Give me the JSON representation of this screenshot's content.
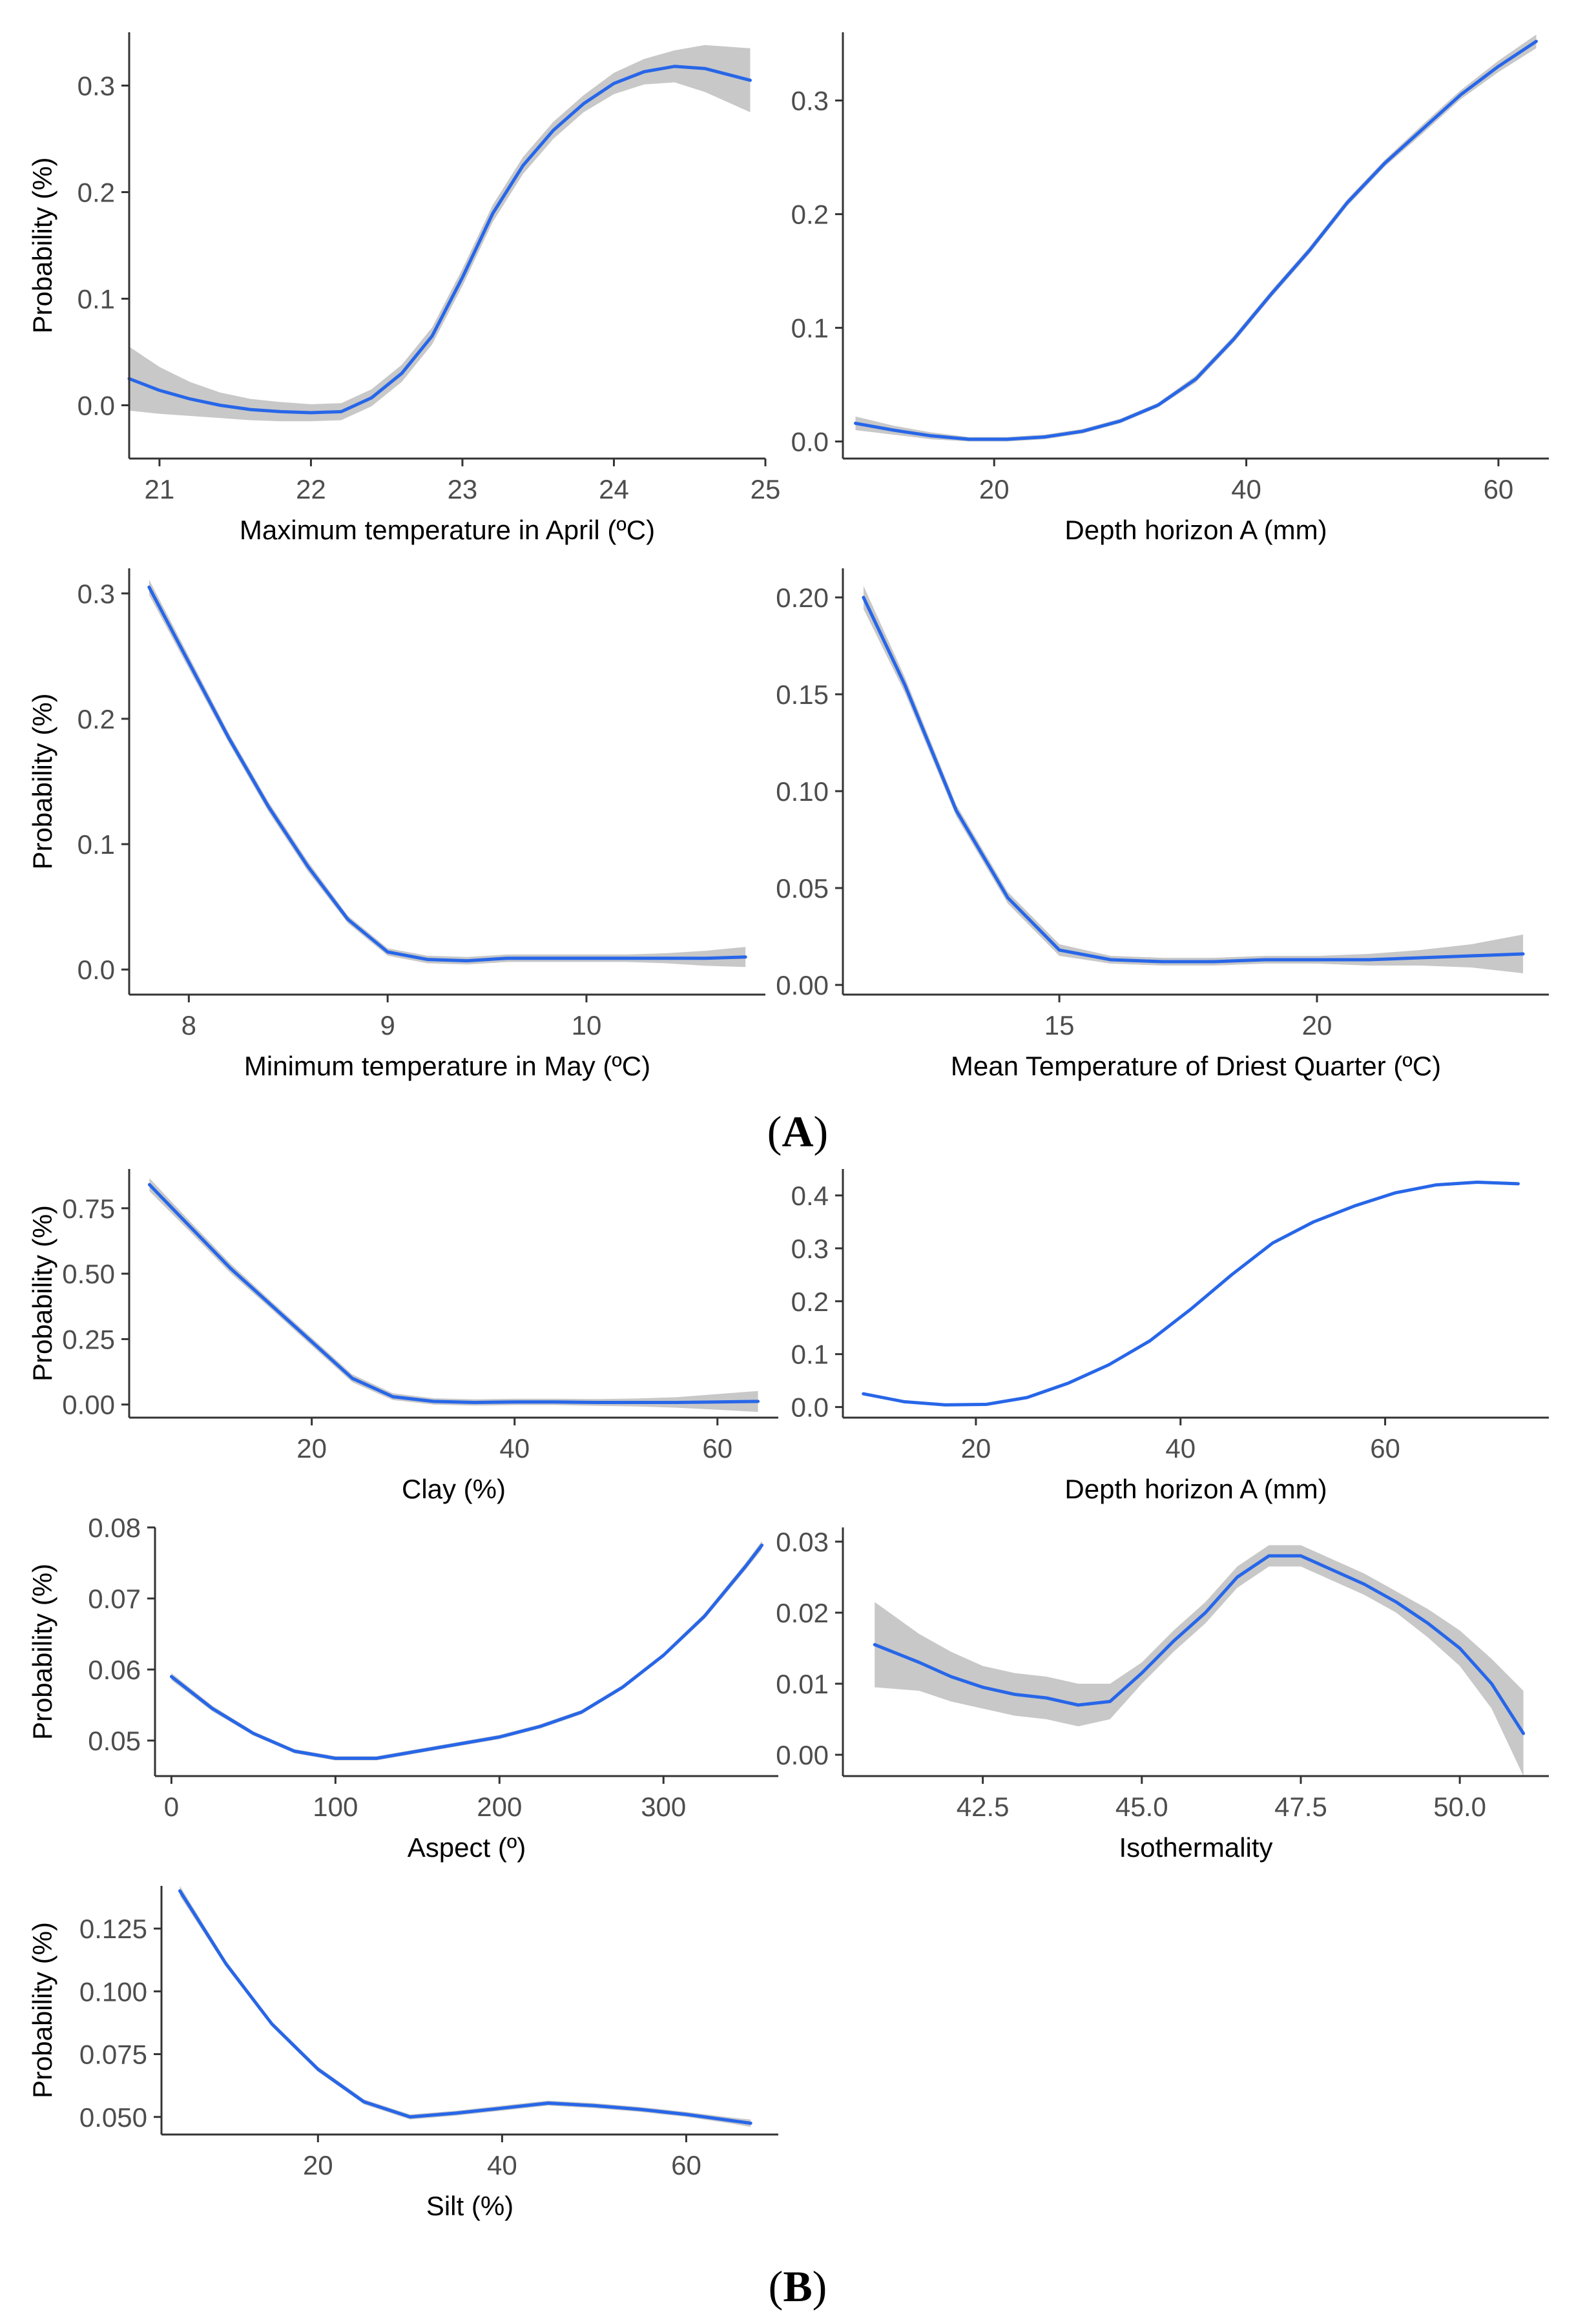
{
  "figure": {
    "panel_labels": [
      {
        "open": "(",
        "letter": "A",
        "close": ")"
      },
      {
        "open": "(",
        "letter": "B",
        "close": ")"
      }
    ]
  },
  "colors": {
    "line": "#2766e8",
    "band": "#c8c8c8",
    "axis": "#333333",
    "tick_text": "#4d4d4d",
    "label_text": "#000000"
  },
  "chart_data": [
    {
      "type": "line",
      "panel": "A",
      "xlabel": "Maximum temperature in April (ºC)",
      "ylabel": "Probability (%)",
      "xlim": [
        20.8,
        25.0
      ],
      "ylim": [
        -0.05,
        0.35
      ],
      "xticks": [
        21,
        22,
        23,
        24,
        25
      ],
      "yticks": [
        0.0,
        0.1,
        0.2,
        0.3
      ],
      "ytick_labels": [
        "0.0",
        "0.1",
        "0.2",
        "0.3"
      ],
      "x": [
        20.8,
        21.0,
        21.2,
        21.4,
        21.6,
        21.8,
        22.0,
        22.2,
        22.4,
        22.6,
        22.8,
        23.0,
        23.2,
        23.4,
        23.6,
        23.8,
        24.0,
        24.2,
        24.4,
        24.6,
        24.9
      ],
      "y": [
        0.025,
        0.014,
        0.006,
        0.0,
        -0.004,
        -0.006,
        -0.007,
        -0.006,
        0.007,
        0.03,
        0.065,
        0.12,
        0.18,
        0.225,
        0.258,
        0.283,
        0.302,
        0.313,
        0.318,
        0.316,
        0.305
      ],
      "band": [
        0.03,
        0.022,
        0.016,
        0.012,
        0.01,
        0.009,
        0.008,
        0.008,
        0.008,
        0.008,
        0.008,
        0.008,
        0.008,
        0.008,
        0.008,
        0.008,
        0.01,
        0.012,
        0.015,
        0.022,
        0.03
      ]
    },
    {
      "type": "line",
      "panel": "A",
      "xlabel": "Depth horizon A (mm)",
      "ylabel": "",
      "xlim": [
        8,
        64
      ],
      "ylim": [
        -0.015,
        0.36
      ],
      "xticks": [
        20,
        40,
        60
      ],
      "yticks": [
        0.0,
        0.1,
        0.2,
        0.3
      ],
      "ytick_labels": [
        "0.0",
        "0.1",
        "0.2",
        "0.3"
      ],
      "x": [
        9,
        12,
        15,
        18,
        21,
        24,
        27,
        30,
        33,
        36,
        39,
        42,
        45,
        48,
        51,
        54,
        57,
        60,
        63
      ],
      "y": [
        0.016,
        0.01,
        0.005,
        0.002,
        0.002,
        0.004,
        0.009,
        0.018,
        0.032,
        0.055,
        0.09,
        0.13,
        0.168,
        0.21,
        0.245,
        0.275,
        0.305,
        0.33,
        0.352
      ],
      "band": [
        0.006,
        0.004,
        0.003,
        0.002,
        0.002,
        0.002,
        0.002,
        0.002,
        0.002,
        0.003,
        0.003,
        0.003,
        0.003,
        0.003,
        0.003,
        0.004,
        0.004,
        0.005,
        0.006
      ]
    },
    {
      "type": "line",
      "panel": "A",
      "xlabel": "Minimum temperature in May (ºC)",
      "ylabel": "Probability (%)",
      "xlim": [
        7.7,
        10.9
      ],
      "ylim": [
        -0.02,
        0.32
      ],
      "xticks": [
        8,
        9,
        10
      ],
      "yticks": [
        0.0,
        0.1,
        0.2,
        0.3
      ],
      "ytick_labels": [
        "0.0",
        "0.1",
        "0.2",
        "0.3"
      ],
      "x": [
        7.8,
        8.0,
        8.2,
        8.4,
        8.6,
        8.8,
        9.0,
        9.2,
        9.4,
        9.6,
        9.8,
        10.0,
        10.2,
        10.4,
        10.6,
        10.8
      ],
      "y": [
        0.305,
        0.245,
        0.185,
        0.13,
        0.082,
        0.04,
        0.014,
        0.008,
        0.007,
        0.009,
        0.009,
        0.009,
        0.009,
        0.009,
        0.009,
        0.01
      ],
      "band": [
        0.006,
        0.005,
        0.004,
        0.004,
        0.004,
        0.003,
        0.003,
        0.003,
        0.003,
        0.003,
        0.003,
        0.003,
        0.003,
        0.004,
        0.006,
        0.008
      ]
    },
    {
      "type": "line",
      "panel": "A",
      "xlabel": "Mean Temperature of Driest Quarter (ºC)",
      "ylabel": "",
      "xlim": [
        10.8,
        24.5
      ],
      "ylim": [
        -0.005,
        0.215
      ],
      "xticks": [
        15,
        20
      ],
      "yticks": [
        0.0,
        0.05,
        0.1,
        0.15,
        0.2
      ],
      "ytick_labels": [
        "0.00",
        "0.05",
        "0.10",
        "0.15",
        "0.20"
      ],
      "x": [
        11.2,
        12,
        13,
        14,
        15,
        16,
        17,
        18,
        19,
        20,
        21,
        22,
        23,
        24
      ],
      "y": [
        0.2,
        0.155,
        0.09,
        0.045,
        0.018,
        0.013,
        0.012,
        0.012,
        0.013,
        0.013,
        0.013,
        0.014,
        0.015,
        0.016
      ],
      "band": [
        0.006,
        0.004,
        0.003,
        0.003,
        0.003,
        0.002,
        0.002,
        0.002,
        0.002,
        0.002,
        0.003,
        0.004,
        0.006,
        0.01
      ]
    },
    {
      "type": "line",
      "panel": "B",
      "xlabel": "Clay (%)",
      "ylabel": "Probability (%)",
      "xlim": [
        2,
        66
      ],
      "ylim": [
        -0.05,
        0.9
      ],
      "xticks": [
        20,
        40,
        60
      ],
      "yticks": [
        0.0,
        0.25,
        0.5,
        0.75
      ],
      "ytick_labels": [
        "0.00",
        "0.25",
        "0.50",
        "0.75"
      ],
      "x": [
        4,
        8,
        12,
        16,
        20,
        24,
        28,
        32,
        36,
        40,
        44,
        48,
        52,
        56,
        60,
        64
      ],
      "y": [
        0.84,
        0.68,
        0.52,
        0.38,
        0.24,
        0.1,
        0.03,
        0.012,
        0.008,
        0.01,
        0.01,
        0.008,
        0.008,
        0.008,
        0.01,
        0.012
      ],
      "band": [
        0.025,
        0.02,
        0.018,
        0.015,
        0.015,
        0.015,
        0.013,
        0.012,
        0.012,
        0.012,
        0.012,
        0.013,
        0.015,
        0.02,
        0.03,
        0.04
      ]
    },
    {
      "type": "line",
      "panel": "B",
      "xlabel": "Depth horizon A (mm)",
      "ylabel": "",
      "xlim": [
        7,
        76
      ],
      "ylim": [
        -0.02,
        0.45
      ],
      "xticks": [
        20,
        40,
        60
      ],
      "yticks": [
        0.0,
        0.1,
        0.2,
        0.3,
        0.4
      ],
      "ytick_labels": [
        "0.0",
        "0.1",
        "0.2",
        "0.3",
        "0.4"
      ],
      "x": [
        9,
        13,
        17,
        21,
        25,
        29,
        33,
        37,
        41,
        45,
        49,
        53,
        57,
        61,
        65,
        69,
        73
      ],
      "y": [
        0.025,
        0.01,
        0.004,
        0.005,
        0.018,
        0.045,
        0.08,
        0.125,
        0.185,
        0.25,
        0.31,
        0.35,
        0.38,
        0.405,
        0.42,
        0.425,
        0.422
      ],
      "band": [
        0.003,
        0.002,
        0.002,
        0.002,
        0.002,
        0.002,
        0.002,
        0.002,
        0.002,
        0.002,
        0.002,
        0.002,
        0.003,
        0.003,
        0.003,
        0.003,
        0.003
      ]
    },
    {
      "type": "line",
      "panel": "B",
      "xlabel": "Aspect (º)",
      "ylabel": "Probability (%)",
      "xlim": [
        -10,
        370
      ],
      "ylim": [
        0.045,
        0.08
      ],
      "xticks": [
        0,
        100,
        200,
        300
      ],
      "yticks": [
        0.05,
        0.06,
        0.07,
        0.08
      ],
      "ytick_labels": [
        "0.05",
        "0.06",
        "0.07",
        "0.08"
      ],
      "x": [
        0,
        25,
        50,
        75,
        100,
        125,
        150,
        175,
        200,
        225,
        250,
        275,
        300,
        325,
        350,
        360
      ],
      "y": [
        0.059,
        0.0545,
        0.051,
        0.0485,
        0.0475,
        0.0475,
        0.0485,
        0.0495,
        0.0505,
        0.052,
        0.054,
        0.0575,
        0.062,
        0.0675,
        0.0745,
        0.0775
      ],
      "band": [
        0.0005,
        0.0004,
        0.0003,
        0.0003,
        0.0003,
        0.0003,
        0.0003,
        0.0003,
        0.0003,
        0.0003,
        0.0003,
        0.0003,
        0.0003,
        0.0004,
        0.0005,
        0.0006
      ]
    },
    {
      "type": "line",
      "panel": "B",
      "xlabel": "Isothermality",
      "ylabel": "",
      "xlim": [
        40.3,
        51.4
      ],
      "ylim": [
        -0.003,
        0.032
      ],
      "xticks": [
        42.5,
        45.0,
        47.5,
        50.0
      ],
      "xtick_labels": [
        "42.5",
        "45.0",
        "47.5",
        "50.0"
      ],
      "yticks": [
        0.0,
        0.01,
        0.02,
        0.03
      ],
      "ytick_labels": [
        "0.00",
        "0.01",
        "0.02",
        "0.03"
      ],
      "x": [
        40.8,
        41.5,
        42.0,
        42.5,
        43.0,
        43.5,
        44.0,
        44.5,
        45.0,
        45.5,
        46.0,
        46.5,
        47.0,
        47.5,
        48.0,
        48.5,
        49.0,
        49.5,
        50.0,
        50.5,
        51.0
      ],
      "y": [
        0.0155,
        0.013,
        0.011,
        0.0095,
        0.0085,
        0.008,
        0.007,
        0.0075,
        0.0115,
        0.016,
        0.02,
        0.025,
        0.028,
        0.028,
        0.026,
        0.024,
        0.0215,
        0.0185,
        0.015,
        0.01,
        0.003
      ],
      "band": [
        0.006,
        0.004,
        0.0035,
        0.003,
        0.003,
        0.003,
        0.003,
        0.0025,
        0.0015,
        0.0015,
        0.0015,
        0.0015,
        0.0015,
        0.0015,
        0.0015,
        0.0015,
        0.0015,
        0.002,
        0.0025,
        0.0035,
        0.006
      ]
    },
    {
      "type": "line",
      "panel": "B",
      "xlabel": "Silt (%)",
      "ylabel": "Probability (%)",
      "xlim": [
        3,
        70
      ],
      "ylim": [
        0.043,
        0.142
      ],
      "xticks": [
        20,
        40,
        60
      ],
      "yticks": [
        0.05,
        0.075,
        0.1,
        0.125
      ],
      "ytick_labels": [
        "0.050",
        "0.075",
        "0.100",
        "0.125"
      ],
      "x": [
        5,
        10,
        15,
        20,
        25,
        30,
        35,
        40,
        45,
        50,
        55,
        60,
        65,
        67
      ],
      "y": [
        0.14,
        0.111,
        0.087,
        0.069,
        0.056,
        0.05,
        0.0515,
        0.0535,
        0.0555,
        0.0545,
        0.053,
        0.051,
        0.0485,
        0.0475
      ],
      "band": [
        0.002,
        0.0012,
        0.001,
        0.001,
        0.001,
        0.001,
        0.001,
        0.001,
        0.001,
        0.001,
        0.001,
        0.001,
        0.0012,
        0.0015
      ]
    }
  ]
}
